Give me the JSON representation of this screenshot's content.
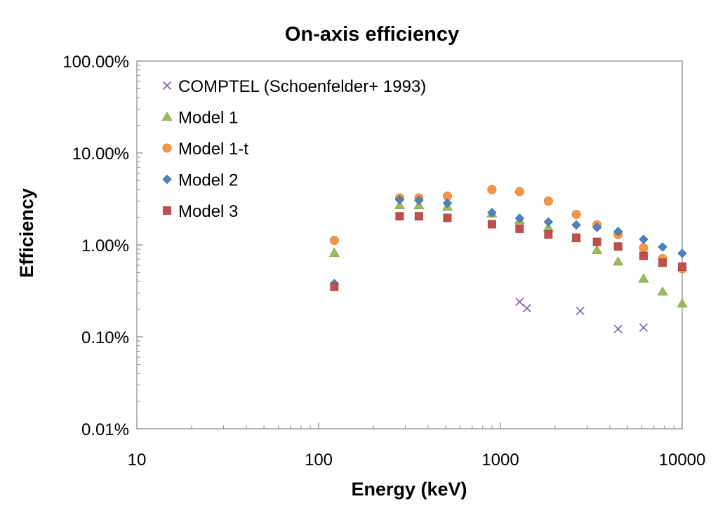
{
  "chart_data": {
    "type": "scatter",
    "title": "On-axis efficiency",
    "xlabel": "Energy (keV)",
    "ylabel": "Efficiency",
    "xscale": "log",
    "yscale": "log",
    "xlim": [
      10,
      10000
    ],
    "ylim": [
      0.0001,
      1.0
    ],
    "x_tick_labels": [
      "10",
      "100",
      "1000",
      "10000"
    ],
    "x_tick_values": [
      10,
      100,
      1000,
      10000
    ],
    "y_tick_labels": [
      "0.01%",
      "0.10%",
      "1.00%",
      "10.00%",
      "100.00%"
    ],
    "y_tick_values": [
      0.0001,
      0.001,
      0.01,
      0.1,
      1.0
    ],
    "legend_position": "top-left",
    "series": [
      {
        "name": "COMPTEL (Schoenfelder+ 1993)",
        "marker": "x",
        "color": "#7f5f9f",
        "x": [
          1275,
          1400,
          2750,
          4440,
          6130
        ],
        "y": [
          0.0024,
          0.00205,
          0.00192,
          0.00122,
          0.00126
        ]
      },
      {
        "name": "Model 1",
        "marker": "triangle",
        "color": "#9bbb59",
        "x": [
          122,
          279,
          356,
          511,
          898,
          1275,
          1836,
          2614,
          3400,
          4440,
          6130,
          7800,
          10000
        ],
        "y": [
          0.0082,
          0.027,
          0.027,
          0.026,
          0.022,
          0.0185,
          0.0155,
          0.0118,
          0.0088,
          0.0066,
          0.0043,
          0.0031,
          0.0023
        ]
      },
      {
        "name": "Model 1-t",
        "marker": "circle",
        "color": "#f79646",
        "x": [
          122,
          279,
          356,
          511,
          898,
          1275,
          1836,
          2614,
          3400,
          4440,
          6130,
          7800,
          10000
        ],
        "y": [
          0.0112,
          0.0325,
          0.0325,
          0.034,
          0.04,
          0.038,
          0.03,
          0.0215,
          0.0165,
          0.013,
          0.0093,
          0.0071,
          0.0055
        ]
      },
      {
        "name": "Model 2",
        "marker": "diamond",
        "color": "#4f81bd",
        "x": [
          122,
          279,
          356,
          511,
          898,
          1275,
          1836,
          2614,
          3400,
          4440,
          6130,
          7800,
          10000
        ],
        "y": [
          0.0038,
          0.031,
          0.0305,
          0.0285,
          0.0225,
          0.0195,
          0.0178,
          0.0165,
          0.0155,
          0.014,
          0.0115,
          0.0095,
          0.0081
        ]
      },
      {
        "name": "Model 3",
        "marker": "square",
        "color": "#c0504d",
        "x": [
          122,
          279,
          356,
          511,
          898,
          1275,
          1836,
          2614,
          3400,
          4440,
          6130,
          7800,
          10000
        ],
        "y": [
          0.0035,
          0.0205,
          0.0205,
          0.0197,
          0.0168,
          0.015,
          0.013,
          0.012,
          0.0108,
          0.0096,
          0.0076,
          0.0064,
          0.0058
        ]
      }
    ]
  }
}
